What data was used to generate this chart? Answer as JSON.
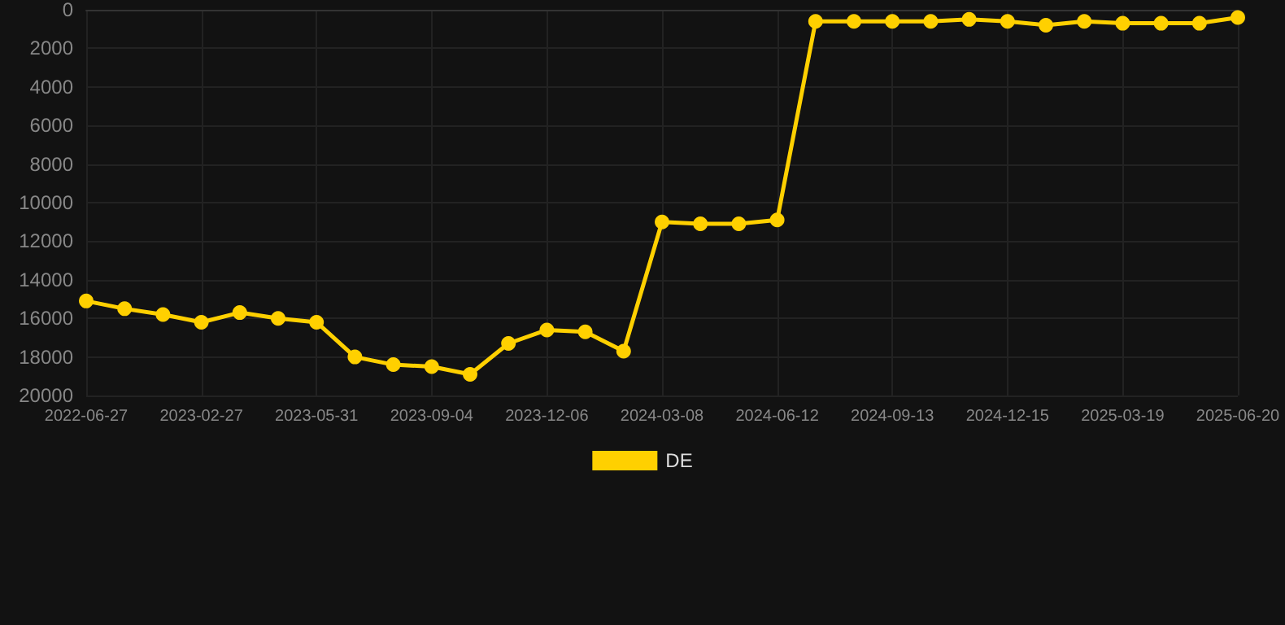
{
  "chart_data": {
    "type": "line",
    "categories": [
      "2022-06-27",
      null,
      null,
      "2023-02-27",
      null,
      null,
      "2023-05-31",
      null,
      null,
      "2023-09-04",
      null,
      null,
      "2023-12-06",
      null,
      null,
      "2024-03-08",
      null,
      null,
      "2024-06-12",
      null,
      null,
      "2024-09-13",
      null,
      null,
      "2024-12-15",
      null,
      null,
      "2025-03-19",
      null,
      null,
      "2025-06-20"
    ],
    "series": [
      {
        "name": "DE",
        "color": "#ffd000",
        "values": [
          15100,
          15500,
          15800,
          16200,
          15700,
          16000,
          16200,
          18000,
          18400,
          18500,
          18900,
          17300,
          16600,
          16700,
          17700,
          11000,
          11100,
          11100,
          10900,
          600,
          600,
          600,
          600,
          500,
          600,
          800,
          600,
          700,
          700,
          700,
          400
        ]
      }
    ],
    "ylim": [
      20000,
      0
    ],
    "yticks": [
      0,
      2000,
      4000,
      6000,
      8000,
      10000,
      12000,
      14000,
      16000,
      18000,
      20000
    ],
    "grid": true,
    "legend": "bottom",
    "marker": "circle",
    "line_style": "solid"
  }
}
